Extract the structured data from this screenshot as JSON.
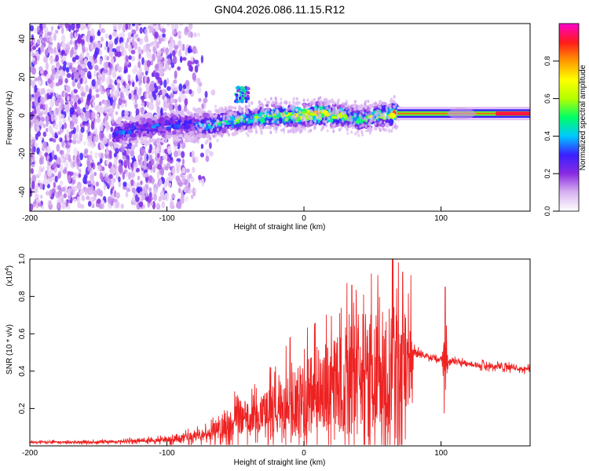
{
  "title": "GN04.2026.086.11.15.R12",
  "colorbar": {
    "label": "Normalized spectral amplitude",
    "tick_labels": [
      "0.0",
      "0.2",
      "0.4",
      "0.6",
      "0.8"
    ],
    "tick_values": [
      0.0,
      0.2,
      0.4,
      0.6,
      0.8
    ],
    "range": [
      0,
      1
    ],
    "stops": [
      "#ffffff",
      "#d9b3f0",
      "#8a2be2",
      "#3a1fff",
      "#00c8ff",
      "#00ff66",
      "#b4ff00",
      "#ffff00",
      "#ff9a00",
      "#ff1a1a",
      "#ff00cc"
    ]
  },
  "chart_data": [
    {
      "type": "heatmap",
      "title": "GN04.2026.086.11.15.R12",
      "xlabel": "Height of straight line (km)",
      "ylabel": "Frequency (Hz)",
      "xlim": [
        -200,
        165
      ],
      "ylim": [
        -50,
        48
      ],
      "x_ticks": [
        -200,
        -100,
        0,
        100
      ],
      "x_tick_labels": [
        "-200",
        "-100",
        "0",
        "100"
      ],
      "y_ticks": [
        -40,
        -20,
        0,
        20,
        40
      ],
      "y_tick_labels": [
        "-40",
        "-20",
        "0",
        "20",
        "40"
      ],
      "ridge": {
        "x": [
          -135,
          -120,
          -100,
          -80,
          -70,
          -55,
          -40,
          -25,
          -10,
          0,
          10,
          25,
          40,
          55,
          68,
          80,
          100,
          120,
          140,
          165
        ],
        "freq": [
          -9,
          -7,
          -5,
          -5,
          -5,
          -3,
          -2,
          0,
          0,
          0,
          1,
          0,
          -2,
          0,
          1,
          0,
          0,
          1,
          1,
          1
        ],
        "amplitude": [
          0.35,
          0.3,
          0.35,
          0.3,
          0.45,
          0.55,
          0.55,
          0.65,
          0.7,
          0.75,
          0.8,
          0.65,
          0.55,
          0.6,
          0.85,
          0.9,
          0.8,
          0.75,
          0.85,
          0.85
        ]
      },
      "secondary_blob": {
        "x": -45,
        "freq": 11,
        "amplitude": 0.35
      },
      "band_edge": {
        "x": [
          -200,
          -100,
          -80,
          -65
        ],
        "spread_hz": [
          48,
          48,
          48,
          20
        ]
      }
    },
    {
      "type": "line",
      "xlabel": "Height of straight line (km)",
      "ylabel": "SNR (10 * v/v)",
      "multiplier_label": "(x10",
      "multiplier_exponent": "4",
      "multiplier_close": ")",
      "xlim": [
        -200,
        165
      ],
      "ylim": [
        0,
        1.0
      ],
      "x_ticks": [
        -200,
        -100,
        0,
        100
      ],
      "x_tick_labels": [
        "-200",
        "-100",
        "0",
        "100"
      ],
      "y_ticks": [
        0.2,
        0.4,
        0.6,
        0.8,
        1.0
      ],
      "y_tick_labels": [
        "0.2",
        "0.4",
        "0.6",
        "0.8",
        "1.0"
      ],
      "color": "#ee2222",
      "envelope": {
        "x": [
          -200,
          -150,
          -110,
          -90,
          -70,
          -60,
          -50,
          -40,
          -30,
          -20,
          -10,
          0,
          10,
          20,
          30,
          40,
          50,
          60,
          65,
          70,
          75,
          78,
          80,
          90,
          100,
          103,
          105,
          110,
          130,
          150,
          165
        ],
        "base": [
          0.02,
          0.02,
          0.03,
          0.04,
          0.06,
          0.1,
          0.15,
          0.16,
          0.18,
          0.2,
          0.22,
          0.25,
          0.3,
          0.32,
          0.35,
          0.36,
          0.4,
          0.38,
          0.4,
          0.4,
          0.45,
          0.45,
          0.5,
          0.48,
          0.46,
          0.46,
          0.45,
          0.45,
          0.43,
          0.42,
          0.41
        ],
        "spread": [
          0.01,
          0.015,
          0.02,
          0.04,
          0.07,
          0.12,
          0.2,
          0.18,
          0.2,
          0.3,
          0.35,
          0.4,
          0.45,
          0.5,
          0.55,
          0.6,
          0.6,
          0.65,
          0.7,
          0.65,
          0.55,
          0.5,
          0.05,
          0.03,
          0.03,
          0.4,
          0.05,
          0.03,
          0.03,
          0.03,
          0.03
        ]
      },
      "peak_points": [
        {
          "x": 65,
          "y": 1.0
        },
        {
          "x": 103,
          "y": 0.85
        },
        {
          "x": 35,
          "y": 0.86
        },
        {
          "x": -10,
          "y": 0.58
        },
        {
          "x": 72,
          "y": 0.93
        }
      ]
    }
  ]
}
